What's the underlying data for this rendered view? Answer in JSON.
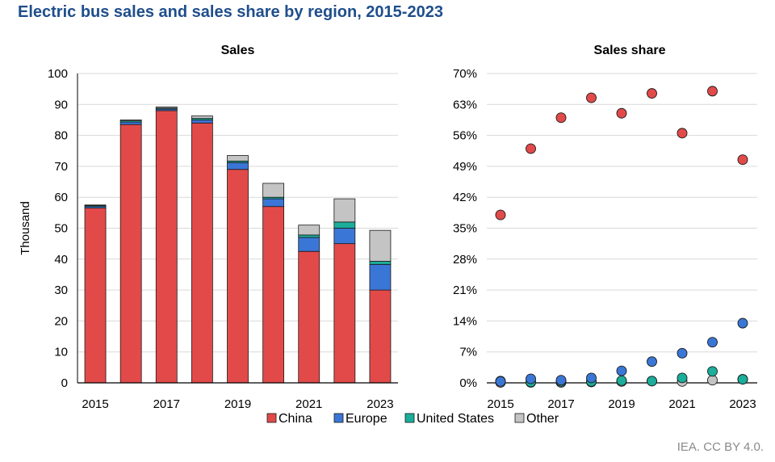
{
  "title": "Electric bus sales and sales share by region, 2015-2023",
  "source": "IEA. CC BY 4.0.",
  "colors": {
    "China": "#e24a4a",
    "Europe": "#3a76d6",
    "United States": "#1aae9b",
    "Other": "#c4c4c4"
  },
  "chart_data": [
    {
      "type": "bar",
      "stacked": true,
      "title": "Sales",
      "ylabel": "Thousand",
      "ylim": [
        0,
        100
      ],
      "yticks": [
        "0",
        "10",
        "20",
        "30",
        "40",
        "50",
        "60",
        "70",
        "80",
        "90",
        "100"
      ],
      "categories": [
        "2015",
        "2016",
        "2017",
        "2018",
        "2019",
        "2020",
        "2021",
        "2022",
        "2023"
      ],
      "xtick_labels": [
        "2015",
        "",
        "2017",
        "",
        "2019",
        "",
        "2021",
        "",
        "2023"
      ],
      "series": [
        {
          "name": "China",
          "values": [
            56.5,
            83.5,
            88,
            84,
            69,
            57,
            42.5,
            45,
            30
          ]
        },
        {
          "name": "Europe",
          "values": [
            0.5,
            0.8,
            0.5,
            1,
            2.2,
            2.5,
            4.5,
            5,
            8.3
          ]
        },
        {
          "name": "United States",
          "values": [
            0.3,
            0.4,
            0.3,
            0.5,
            0.5,
            0.5,
            0.8,
            2,
            1
          ]
        },
        {
          "name": "Other",
          "values": [
            0.2,
            0.3,
            0.4,
            0.8,
            1.8,
            4.5,
            3.2,
            7.5,
            10
          ]
        }
      ],
      "grid": true
    },
    {
      "type": "scatter",
      "title": "Sales share",
      "ylim": [
        0,
        70
      ],
      "yticks": [
        "0%",
        "7%",
        "14%",
        "21%",
        "28%",
        "35%",
        "42%",
        "49%",
        "56%",
        "63%",
        "70%"
      ],
      "categories": [
        "2015",
        "2016",
        "2017",
        "2018",
        "2019",
        "2020",
        "2021",
        "2022",
        "2023"
      ],
      "xtick_labels": [
        "2015",
        "",
        "2017",
        "",
        "2019",
        "",
        "2021",
        "",
        "2023"
      ],
      "series": [
        {
          "name": "China",
          "values": [
            38,
            53,
            60,
            64.5,
            61,
            65.5,
            56.5,
            66,
            50.5
          ]
        },
        {
          "name": "Europe",
          "values": [
            0.3,
            0.9,
            0.6,
            1.1,
            2.7,
            4.8,
            6.7,
            9.2,
            13.5
          ]
        },
        {
          "name": "United States",
          "values": [
            0.4,
            0.2,
            0.3,
            0.3,
            0.5,
            0.4,
            1.1,
            2.6,
            0.8
          ]
        },
        {
          "name": "Other",
          "values": [
            0.1,
            0.1,
            0.1,
            0.2,
            0.3,
            0.4,
            0.3,
            0.6,
            0.8
          ]
        }
      ],
      "grid": true
    }
  ],
  "legend": {
    "placement": "bottom",
    "items": [
      "China",
      "Europe",
      "United States",
      "Other"
    ]
  }
}
